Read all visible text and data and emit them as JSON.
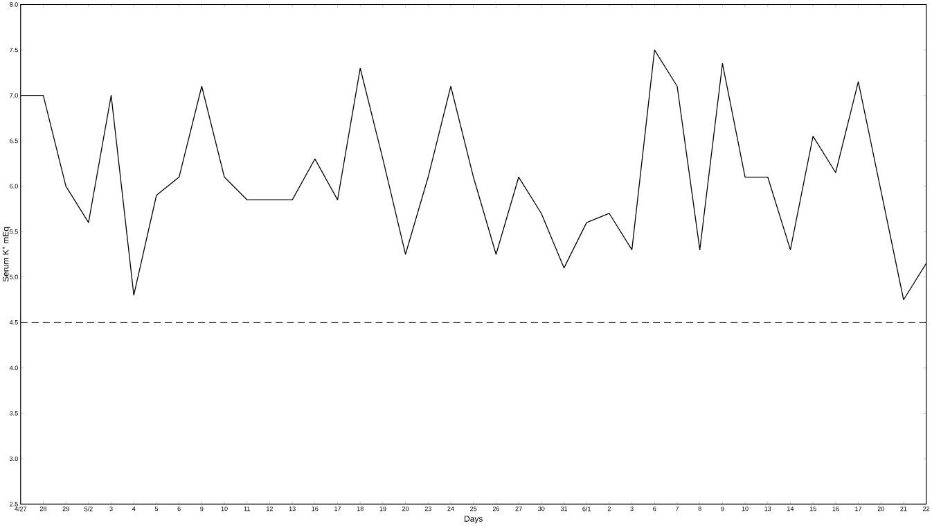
{
  "chart_data": {
    "type": "line",
    "xlabel": "Days",
    "ylabel": "Serum K$^{+}$ mEq",
    "categories": [
      "4/27",
      "28",
      "29",
      "5/2",
      "3",
      "4",
      "5",
      "6",
      "9",
      "10",
      "11",
      "12",
      "13",
      "16",
      "17",
      "18",
      "19",
      "20",
      "23",
      "24",
      "25",
      "26",
      "27",
      "30",
      "31",
      "6/1",
      "2",
      "3",
      "6",
      "7",
      "8",
      "9",
      "10",
      "13",
      "14",
      "15",
      "16",
      "17",
      "20",
      "21",
      "22"
    ],
    "series": [
      {
        "color": "#000000",
        "values": [
          7.0,
          7.0,
          6.0,
          5.6,
          7.0,
          4.8,
          5.9,
          6.1,
          7.1,
          6.1,
          5.85,
          5.85,
          5.85,
          6.3,
          5.85,
          7.3,
          6.3,
          5.25,
          6.1,
          7.1,
          6.1,
          5.25,
          6.1,
          5.7,
          5.1,
          5.6,
          5.7,
          5.3,
          7.5,
          7.1,
          5.3,
          7.35,
          6.1,
          6.1,
          5.3,
          6.55,
          6.15,
          7.15,
          5.95,
          4.75,
          5.15
        ]
      }
    ],
    "ylim": [
      2.5,
      8.0
    ],
    "yticks": [
      {
        "value": 2.5,
        "label": "2.5"
      },
      {
        "value": 3.0,
        "label": "3.0"
      },
      {
        "value": 3.5,
        "label": "3.5"
      },
      {
        "value": 4.0,
        "label": "4.0"
      },
      {
        "value": 4.5,
        "label": "4.5"
      },
      {
        "value": 5.0,
        "label": "5.0"
      },
      {
        "value": 5.5,
        "label": "5.5"
      },
      {
        "value": 6.0,
        "label": "6.0"
      },
      {
        "value": 6.5,
        "label": "6.5"
      },
      {
        "value": 7.0,
        "label": "7.0"
      },
      {
        "value": 7.5,
        "label": "7.5"
      },
      {
        "value": 8.0,
        "label": "8.0"
      }
    ],
    "ref_lines": [
      {
        "axis": "y",
        "value": 4.5,
        "color": "#000000",
        "line_style": "dashed"
      }
    ],
    "grid": false,
    "marker": "none",
    "line_style": "solid"
  }
}
